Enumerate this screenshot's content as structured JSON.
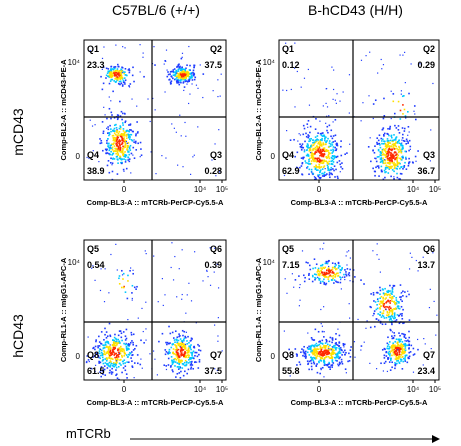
{
  "columns": [
    "C57BL/6 (+/+)",
    "B-hCD43 (H/H)"
  ],
  "rows": [
    "mCD43",
    "hCD43"
  ],
  "bottom_label": "mTCRb",
  "colors": {
    "low": "#1f3cff",
    "mid": "#00c8ff",
    "high": "#ffe000",
    "peak": "#ff2a00"
  },
  "chart_data": [
    {
      "type": "scatter",
      "id": "top-left",
      "xlabel": "Comp-BL3-A :: mTCRb-PerCP-Cy5.5-A",
      "ylabel": "Comp-BL2-A :: mCD43-PE-A",
      "x_ticks": [
        "0",
        "10⁴",
        "10⁵"
      ],
      "y_ticks": [
        "10⁴",
        "0"
      ],
      "quadrants": [
        {
          "name": "Q1",
          "value": "23.3"
        },
        {
          "name": "Q2",
          "value": "37.5"
        },
        {
          "name": "Q3",
          "value": "0.28"
        },
        {
          "name": "Q4",
          "value": "38.9"
        }
      ]
    },
    {
      "type": "scatter",
      "id": "top-right",
      "xlabel": "Comp-BL3-A :: mTCRb-PerCP-Cy5.5-A",
      "ylabel": "Comp-BL2-A :: mCD43-PE-A",
      "x_ticks": [
        "0",
        "10⁴",
        "10⁵"
      ],
      "y_ticks": [
        "10⁴",
        "0"
      ],
      "quadrants": [
        {
          "name": "Q1",
          "value": "0.12"
        },
        {
          "name": "Q2",
          "value": "0.29"
        },
        {
          "name": "Q3",
          "value": "36.7"
        },
        {
          "name": "Q4",
          "value": "62.9"
        }
      ]
    },
    {
      "type": "scatter",
      "id": "bottom-left",
      "xlabel": "Comp-BL3-A :: mTCRb-PerCP-Cy5.5-A",
      "ylabel": "Comp-RL1-A :: mIgG1-APC-A",
      "x_ticks": [
        "0",
        "10⁴",
        "10⁵"
      ],
      "y_ticks": [
        "10⁴",
        "0"
      ],
      "quadrants": [
        {
          "name": "Q5",
          "value": "0.54"
        },
        {
          "name": "Q6",
          "value": "0.39"
        },
        {
          "name": "Q7",
          "value": "37.5"
        },
        {
          "name": "Q8",
          "value": "61.5"
        }
      ]
    },
    {
      "type": "scatter",
      "id": "bottom-right",
      "xlabel": "Comp-BL3-A :: mTCRb-PerCP-Cy5.5-A",
      "ylabel": "Comp-RL1-A :: mIgG1-APC-A",
      "x_ticks": [
        "0",
        "10⁴",
        "10⁵"
      ],
      "y_ticks": [
        "10⁴",
        "0"
      ],
      "quadrants": [
        {
          "name": "Q5",
          "value": "7.15"
        },
        {
          "name": "Q6",
          "value": "13.7"
        },
        {
          "name": "Q7",
          "value": "23.4"
        },
        {
          "name": "Q8",
          "value": "55.8"
        }
      ]
    }
  ]
}
